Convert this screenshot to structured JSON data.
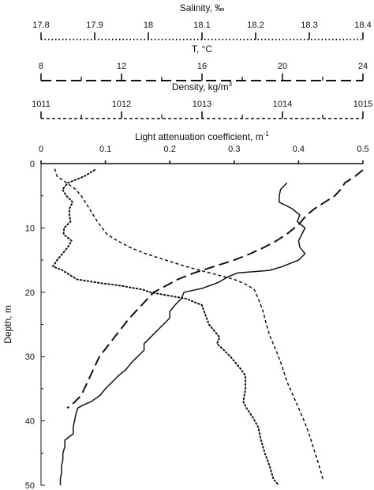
{
  "chart_data": {
    "type": "line",
    "layout_note": "vertical profile chart with four stacked top x-axes and one shared depth y-axis",
    "y_axis": {
      "label": "Depth, m",
      "range": [
        0,
        50
      ],
      "inverted": true,
      "ticks": [
        "0",
        "10",
        "20",
        "30",
        "40",
        "50"
      ]
    },
    "top_axes": [
      {
        "id": "salinity",
        "label": "Salinity, ‰",
        "range": [
          17.8,
          18.4
        ],
        "ticks": [
          "17.8",
          "17.9",
          "18",
          "18.1",
          "18.2",
          "18.3",
          "18.4"
        ],
        "line_style": "dotted",
        "minor_ticks": false
      },
      {
        "id": "temperature",
        "label": "T, °C",
        "range": [
          8,
          24
        ],
        "ticks": [
          "8",
          "12",
          "16",
          "20",
          "24"
        ],
        "line_style": "long-dash",
        "minor_ticks": true
      },
      {
        "id": "density",
        "label": "Density, kg/m3",
        "label_base": "Density, kg/m",
        "label_sup": "3",
        "range": [
          1011,
          1015
        ],
        "ticks": [
          "1011",
          "1012",
          "1013",
          "1014",
          "1015"
        ],
        "line_style": "short-dash",
        "minor_ticks": true
      },
      {
        "id": "light",
        "label": "Light attenuation coefficient, m-1",
        "label_base": "Light attenuation coefficient, m",
        "label_sup": "-1",
        "range": [
          0,
          0.5
        ],
        "ticks": [
          "0",
          "0.1",
          "0.2",
          "0.3",
          "0.4",
          "0.5"
        ],
        "line_style": "solid",
        "minor_ticks": false
      }
    ],
    "series": [
      {
        "axis": "salinity",
        "line_style": "dotted",
        "points": [
          [
            17.9,
            1
          ],
          [
            17.88,
            2
          ],
          [
            17.85,
            3
          ],
          [
            17.84,
            4
          ],
          [
            17.847,
            5
          ],
          [
            17.859,
            6
          ],
          [
            17.853,
            7
          ],
          [
            17.853,
            8
          ],
          [
            17.855,
            9
          ],
          [
            17.843,
            10
          ],
          [
            17.842,
            11
          ],
          [
            17.857,
            12
          ],
          [
            17.85,
            13
          ],
          [
            17.84,
            14
          ],
          [
            17.83,
            15
          ],
          [
            17.822,
            16
          ],
          [
            17.838,
            16.5
          ],
          [
            17.867,
            18
          ],
          [
            17.905,
            18.5
          ],
          [
            17.95,
            19
          ],
          [
            17.99,
            19.6
          ],
          [
            18.003,
            20
          ],
          [
            18.07,
            21
          ],
          [
            18.1,
            22
          ],
          [
            18.104,
            23
          ],
          [
            18.113,
            25
          ],
          [
            18.133,
            27
          ],
          [
            18.128,
            28
          ],
          [
            18.141,
            29
          ],
          [
            18.153,
            30
          ],
          [
            18.163,
            31
          ],
          [
            18.173,
            32
          ],
          [
            18.181,
            33
          ],
          [
            18.181,
            35
          ],
          [
            18.177,
            37
          ],
          [
            18.183,
            38
          ],
          [
            18.195,
            39.5
          ],
          [
            18.205,
            41
          ],
          [
            18.21,
            43
          ],
          [
            18.217,
            45
          ],
          [
            18.226,
            47
          ],
          [
            18.233,
            49
          ],
          [
            18.243,
            50
          ]
        ]
      },
      {
        "axis": "temperature",
        "line_style": "long-dash",
        "points": [
          [
            24,
            1
          ],
          [
            23.6,
            2
          ],
          [
            23.1,
            3
          ],
          [
            22.9,
            4
          ],
          [
            22.6,
            5
          ],
          [
            22.1,
            6
          ],
          [
            21.6,
            7
          ],
          [
            21.2,
            8
          ],
          [
            20.8,
            9.5
          ],
          [
            20.2,
            11
          ],
          [
            19.7,
            12
          ],
          [
            19.1,
            13
          ],
          [
            18.4,
            14
          ],
          [
            17.6,
            15
          ],
          [
            16.6,
            16
          ],
          [
            15.6,
            17
          ],
          [
            14.8,
            18
          ],
          [
            14.2,
            19
          ],
          [
            13.6,
            20
          ],
          [
            13.0,
            22
          ],
          [
            12.4,
            24
          ],
          [
            11.9,
            26
          ],
          [
            11.4,
            28
          ],
          [
            10.9,
            30
          ],
          [
            10.6,
            32
          ],
          [
            10.3,
            34
          ],
          [
            10.0,
            36
          ],
          [
            9.7,
            37
          ],
          [
            9.3,
            38
          ]
        ]
      },
      {
        "axis": "density",
        "line_style": "short-dash",
        "points": [
          [
            1011.17,
            0.8
          ],
          [
            1011.2,
            2
          ],
          [
            1011.32,
            3
          ],
          [
            1011.43,
            4
          ],
          [
            1011.5,
            5
          ],
          [
            1011.55,
            6
          ],
          [
            1011.6,
            7
          ],
          [
            1011.7,
            9
          ],
          [
            1011.82,
            11
          ],
          [
            1011.95,
            12
          ],
          [
            1012.1,
            13
          ],
          [
            1012.3,
            14
          ],
          [
            1012.55,
            15
          ],
          [
            1012.8,
            16
          ],
          [
            1013.1,
            17
          ],
          [
            1013.4,
            18
          ],
          [
            1013.55,
            18.8
          ],
          [
            1013.65,
            19.6
          ],
          [
            1013.7,
            21
          ],
          [
            1013.76,
            23
          ],
          [
            1013.8,
            25
          ],
          [
            1013.85,
            27
          ],
          [
            1013.92,
            29
          ],
          [
            1013.98,
            31
          ],
          [
            1014.06,
            34
          ],
          [
            1014.13,
            36
          ],
          [
            1014.2,
            38
          ],
          [
            1014.27,
            40
          ],
          [
            1014.33,
            42
          ],
          [
            1014.38,
            44
          ],
          [
            1014.43,
            46
          ],
          [
            1014.48,
            48
          ],
          [
            1014.5,
            49
          ]
        ]
      },
      {
        "axis": "light",
        "line_style": "solid",
        "points": [
          [
            0.382,
            3
          ],
          [
            0.372,
            4
          ],
          [
            0.37,
            5
          ],
          [
            0.37,
            6
          ],
          [
            0.39,
            7
          ],
          [
            0.402,
            8
          ],
          [
            0.398,
            9
          ],
          [
            0.41,
            10
          ],
          [
            0.405,
            11
          ],
          [
            0.4,
            12
          ],
          [
            0.402,
            13
          ],
          [
            0.41,
            14
          ],
          [
            0.4,
            15
          ],
          [
            0.375,
            16
          ],
          [
            0.355,
            16.6
          ],
          [
            0.305,
            17
          ],
          [
            0.29,
            17.6
          ],
          [
            0.275,
            18.5
          ],
          [
            0.25,
            19.4
          ],
          [
            0.222,
            20
          ],
          [
            0.218,
            21
          ],
          [
            0.208,
            22
          ],
          [
            0.2,
            23
          ],
          [
            0.2,
            24
          ],
          [
            0.19,
            25
          ],
          [
            0.18,
            26
          ],
          [
            0.17,
            27
          ],
          [
            0.16,
            28
          ],
          [
            0.16,
            29
          ],
          [
            0.15,
            30
          ],
          [
            0.14,
            31
          ],
          [
            0.132,
            32
          ],
          [
            0.12,
            33
          ],
          [
            0.11,
            34
          ],
          [
            0.1,
            35
          ],
          [
            0.092,
            36
          ],
          [
            0.078,
            37
          ],
          [
            0.066,
            37.5
          ],
          [
            0.057,
            38
          ],
          [
            0.054,
            39
          ],
          [
            0.052,
            40
          ],
          [
            0.05,
            41
          ],
          [
            0.05,
            42
          ],
          [
            0.037,
            43
          ],
          [
            0.037,
            44
          ],
          [
            0.034,
            45
          ],
          [
            0.034,
            46
          ],
          [
            0.032,
            47
          ],
          [
            0.032,
            48
          ],
          [
            0.03,
            49
          ],
          [
            0.03,
            50
          ]
        ]
      }
    ]
  }
}
